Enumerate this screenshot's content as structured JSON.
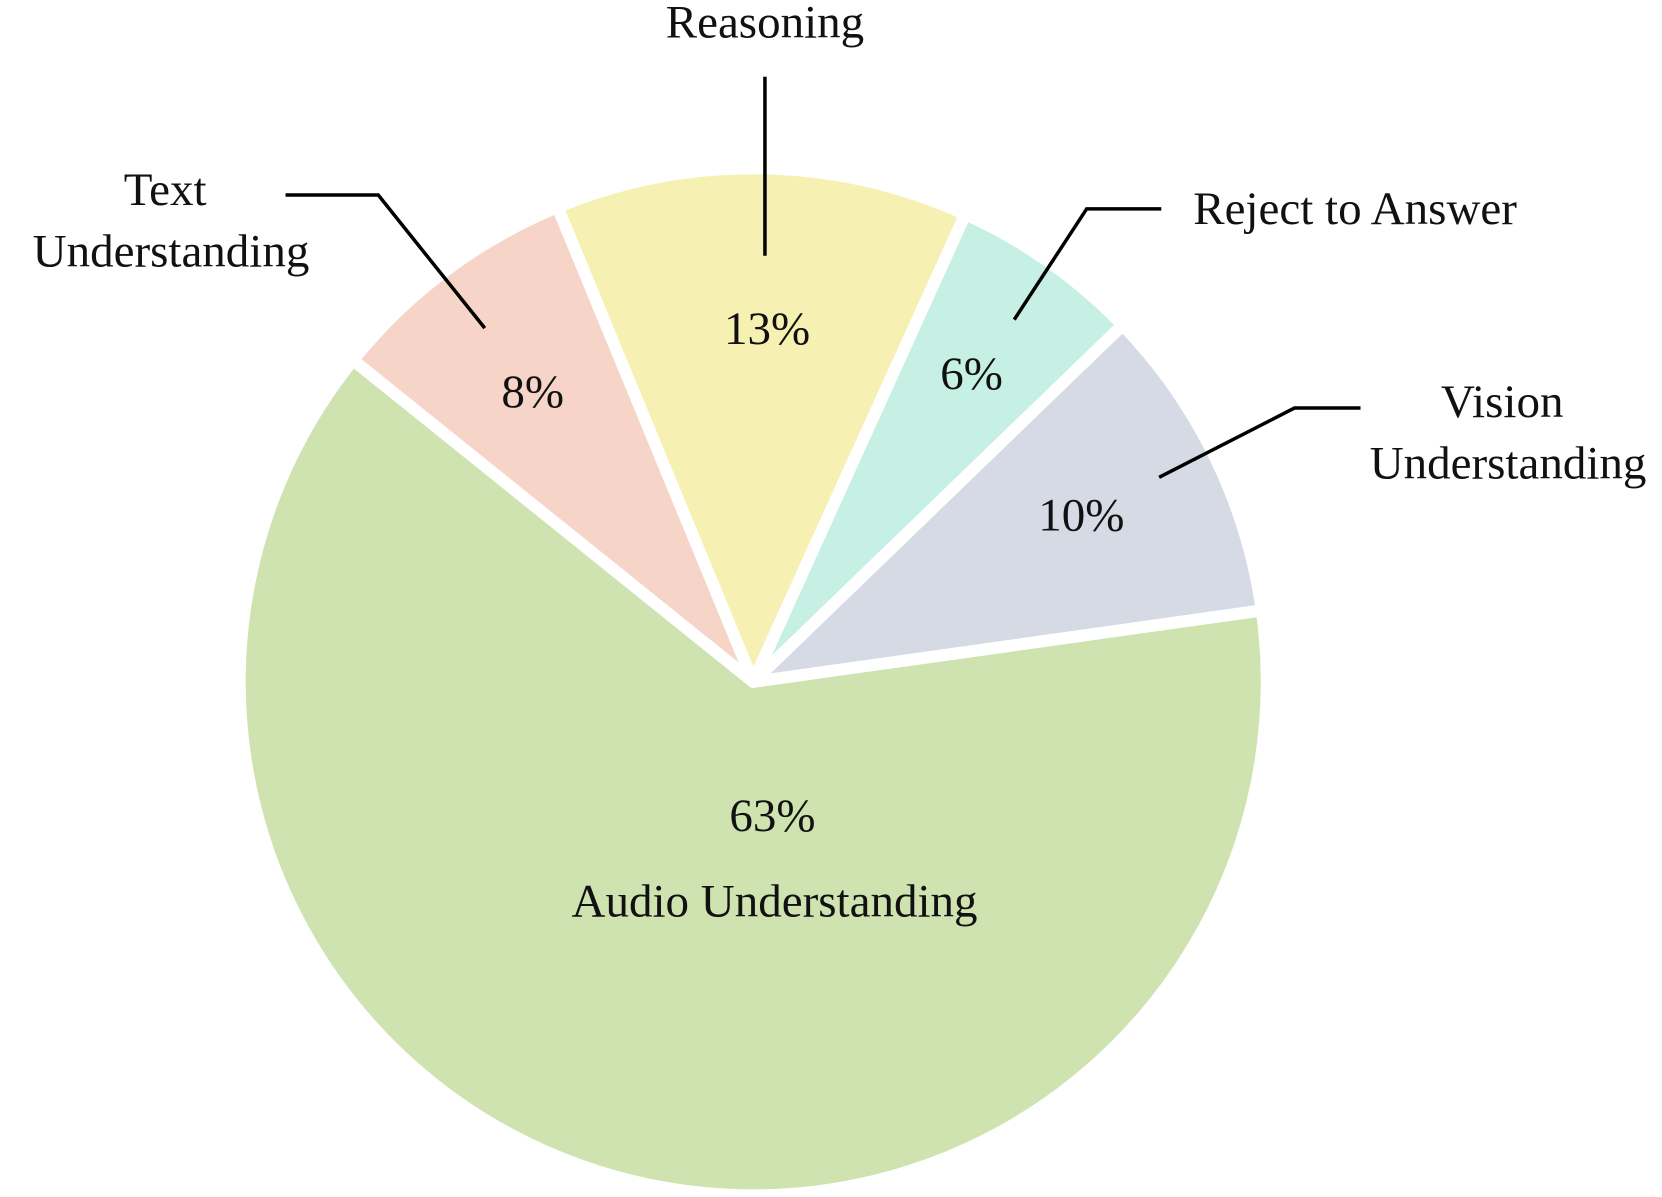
{
  "chart_data": {
    "type": "pie",
    "categories": [
      "Audio Understanding",
      "Text Understanding",
      "Reasoning",
      "Reject to Answer",
      "Vision Understanding"
    ],
    "values": [
      63,
      8,
      13,
      6,
      10
    ],
    "value_labels": [
      "63%",
      "8%",
      "13%",
      "6%",
      "10%"
    ],
    "colors": [
      "#cfe3b1",
      "#f6d5c8",
      "#f6f1b2",
      "#c6f0e3",
      "#d5dae4"
    ]
  }
}
